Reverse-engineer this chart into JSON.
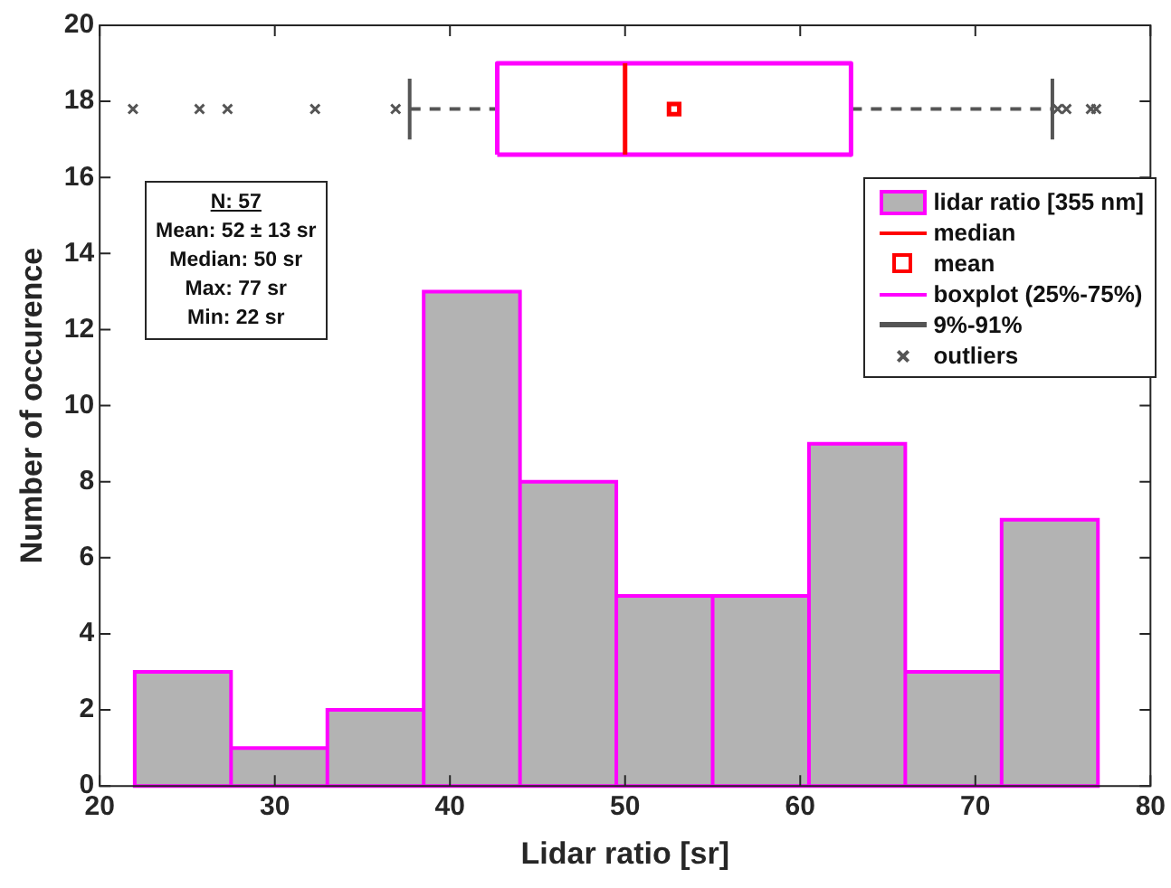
{
  "chart_data": {
    "type": "histogram",
    "xlabel": "Lidar ratio [sr]",
    "ylabel": "Number of occurence",
    "xlim": [
      20,
      80
    ],
    "ylim": [
      0,
      20
    ],
    "xticks": [
      20,
      30,
      40,
      50,
      60,
      70,
      80
    ],
    "yticks": [
      0,
      2,
      4,
      6,
      8,
      10,
      12,
      14,
      16,
      18,
      20
    ],
    "grid": false,
    "legend": "top right",
    "annotations": [
      "N: 57",
      "Mean: 52 ± 13 sr",
      "Median: 50 sr",
      "Max: 77 sr",
      "Min: 22 sr"
    ],
    "series": [
      {
        "name": "lidar ratio [355 nm]",
        "color": "#b3b3b3",
        "bins": [
          22,
          27.5,
          33,
          38.5,
          44,
          49.5,
          55,
          60.5,
          66,
          71.5,
          77
        ],
        "values": [
          3,
          1,
          2,
          13,
          8,
          5,
          5,
          9,
          3,
          7
        ]
      },
      {
        "type": "line",
        "name": "median",
        "color": "#ff0000",
        "marker": "none",
        "x": [
          50,
          50
        ],
        "values": [
          16.6,
          19
        ]
      },
      {
        "type": "scatter",
        "name": "mean",
        "color": "#ff0000",
        "marker": "square",
        "x": [
          52.8
        ],
        "values": [
          17.8
        ]
      },
      {
        "type": "line",
        "name": "boxplot (25%-75%)",
        "color": "#ff00ff",
        "marker": "none",
        "x": [
          42.7,
          42.7,
          62.9,
          62.9
        ],
        "values": [
          16.6,
          19,
          19,
          16.6
        ]
      },
      {
        "type": "line",
        "name": "9%-91%",
        "color": "#555555",
        "marker": "none",
        "line_style": "dashed",
        "x": [
          37.7,
          37.7,
          null,
          37.7,
          42.7,
          null,
          62.9,
          74.4,
          null,
          74.4,
          74.4
        ],
        "values": [
          17,
          18.6,
          null,
          17.8,
          17.8,
          null,
          17.8,
          17.8,
          null,
          17,
          18.6
        ]
      },
      {
        "type": "line",
        "color": "#ff00ff",
        "marker": "none",
        "x": [
          42.7,
          62.9
        ],
        "values": [
          16.6,
          16.6
        ]
      },
      {
        "type": "scatter",
        "name": "outliers",
        "color": "#555555",
        "marker": "cross",
        "x": [
          21.9,
          25.7,
          27.3,
          32.3,
          36.9,
          74.7,
          75.2,
          76.6,
          76.9
        ],
        "values": [
          17.8,
          17.8,
          17.8,
          17.8,
          17.8,
          17.8,
          17.8,
          17.8,
          17.8
        ]
      }
    ]
  }
}
